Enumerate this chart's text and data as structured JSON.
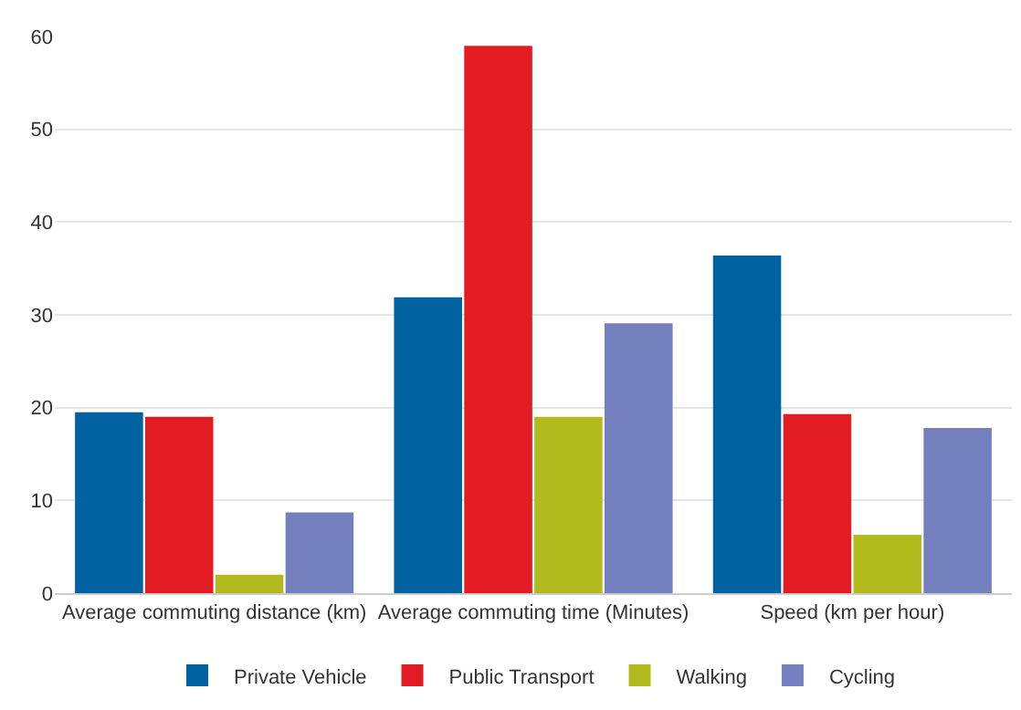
{
  "chart_data": {
    "type": "bar",
    "categories": [
      "Average commuting distance (km)",
      "Average commuting time (Minutes)",
      "Speed (km per hour)"
    ],
    "series": [
      {
        "name": "Private Vehicle",
        "color": "#0062a0",
        "values": [
          19.5,
          31.9,
          36.4
        ]
      },
      {
        "name": "Public Transport",
        "color": "#e31b23",
        "values": [
          19.0,
          59.0,
          19.3
        ]
      },
      {
        "name": "Walking",
        "color": "#b1bb1e",
        "values": [
          2.0,
          19.0,
          6.3
        ]
      },
      {
        "name": "Cycling",
        "color": "#7480bd",
        "values": [
          8.7,
          29.1,
          17.8
        ]
      }
    ],
    "ylim": [
      0,
      60
    ],
    "yticks": [
      0,
      10,
      20,
      30,
      40,
      50,
      60
    ],
    "grid": "y",
    "legend": "bottom"
  }
}
